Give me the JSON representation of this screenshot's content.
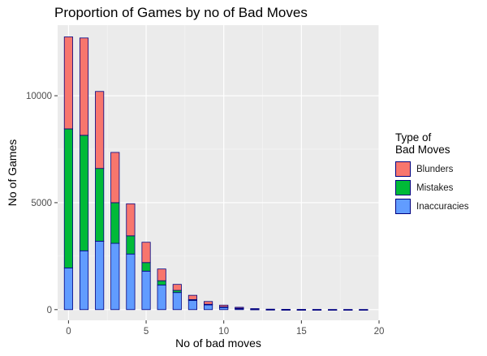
{
  "chart_data": {
    "type": "bar",
    "stacked": true,
    "title": "Proportion of Games by no of Bad Moves",
    "xlabel": "No of bad moves",
    "ylabel": "No of Games",
    "x": [
      0,
      1,
      2,
      3,
      4,
      5,
      6,
      7,
      8,
      9,
      10,
      11,
      12,
      13,
      14,
      15,
      16,
      17,
      18,
      19
    ],
    "xlim": [
      -0.7,
      20
    ],
    "ylim": [
      -500,
      13300
    ],
    "x_ticks": [
      0,
      5,
      10,
      15,
      20
    ],
    "y_ticks": [
      0,
      5000,
      10000
    ],
    "grid": true,
    "legend_title": "Type of\nBad Moves",
    "legend_position": "right",
    "series": [
      {
        "name": "Inaccuracies",
        "color": "#619CFF",
        "values": [
          1950,
          2750,
          3200,
          3100,
          2600,
          1800,
          1150,
          800,
          430,
          230,
          120,
          60,
          25,
          12,
          6,
          3,
          2,
          1,
          1,
          1
        ]
      },
      {
        "name": "Mistakes",
        "color": "#00BA38",
        "values": [
          6500,
          5400,
          3400,
          1900,
          850,
          400,
          200,
          100,
          40,
          20,
          10,
          5,
          2,
          1,
          0,
          0,
          0,
          0,
          0,
          0
        ]
      },
      {
        "name": "Blunders",
        "color": "#F8766D",
        "values": [
          4300,
          4550,
          3600,
          2350,
          1500,
          950,
          550,
          280,
          200,
          130,
          80,
          45,
          20,
          10,
          5,
          3,
          2,
          1,
          1,
          1
        ]
      }
    ]
  }
}
